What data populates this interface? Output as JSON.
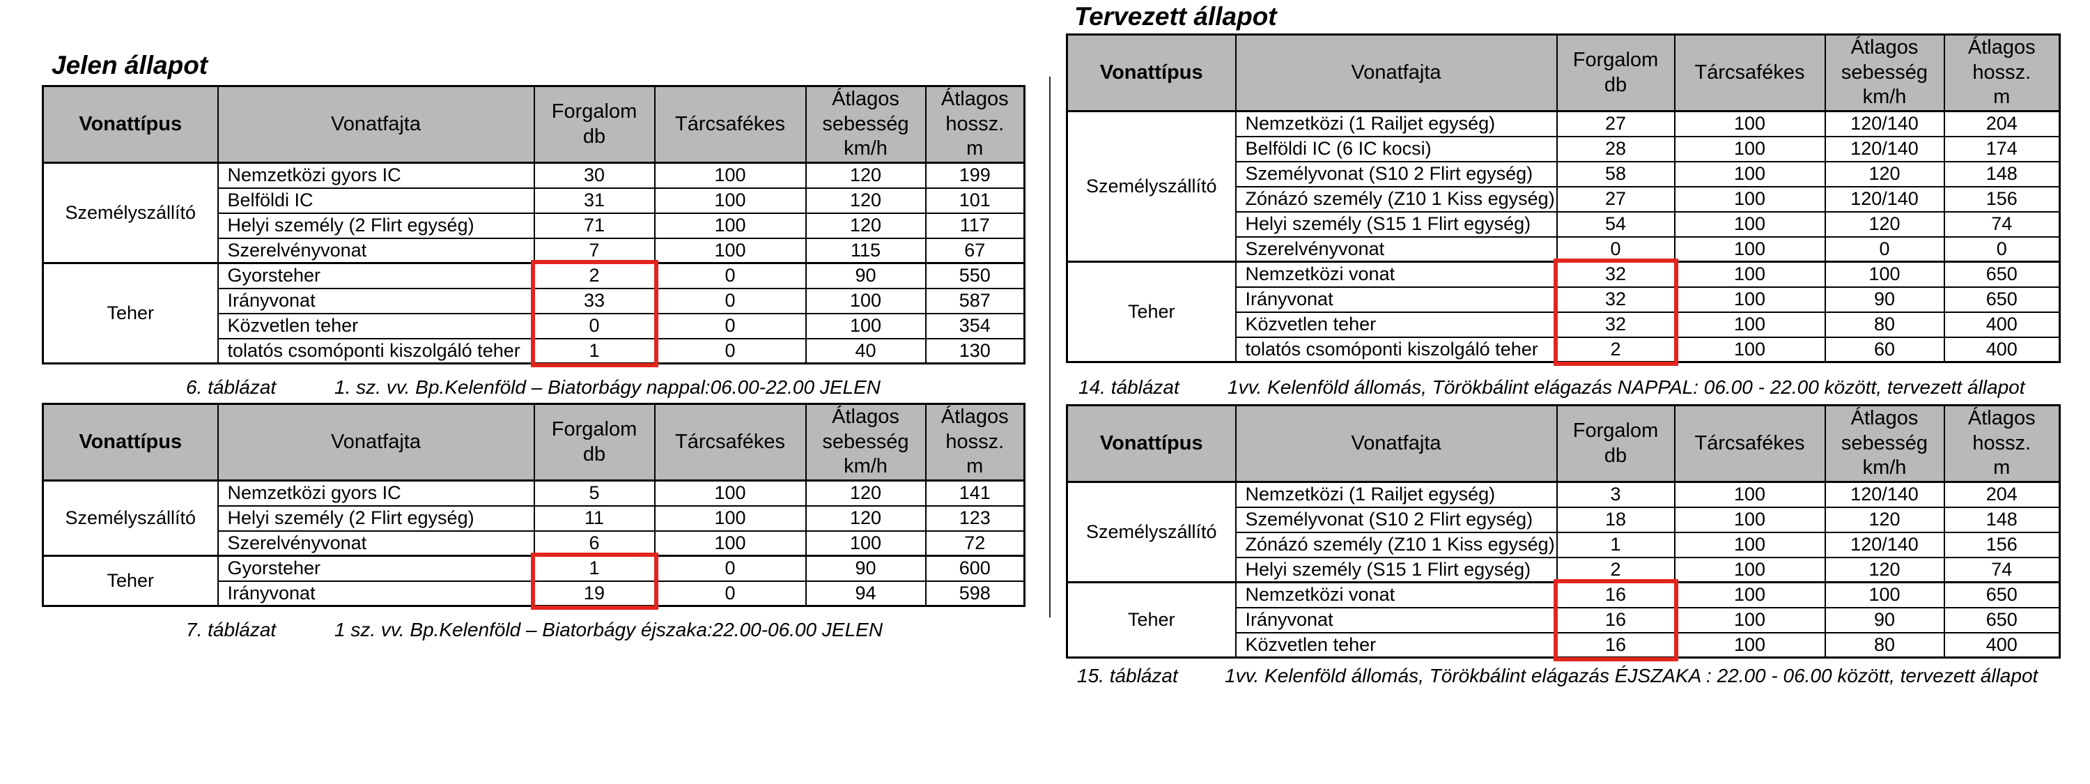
{
  "headings": {
    "left": "Jelen állapot",
    "right": "Tervezett állapot"
  },
  "columns": {
    "vonattipus": "Vonattípus",
    "vonatfajta": "Vonatfajta",
    "forgalom": "Forgalom\ndb",
    "tarcsafekes": "Tárcsafékes",
    "sebesseg": "Átlagos\nsebesség\nkm/h",
    "hossz": "Átlagos\nhossz.\nm"
  },
  "colors": {
    "highlight_box": "#e2251d",
    "header_background": "#b9b9b9"
  },
  "tables": [
    {
      "caption_label": "6. táblázat",
      "caption_text": "1. sz. vv. Bp.Kelenföld – Biatorbágy nappal:06.00-22.00 JELEN",
      "groups": [
        {
          "type": "Személyszállító",
          "highlight": false,
          "rows": [
            [
              "Nemzetközi gyors IC",
              "30",
              "100",
              "120",
              "199"
            ],
            [
              "Belföldi IC",
              "31",
              "100",
              "120",
              "101"
            ],
            [
              "Helyi személy (2 Flirt egység)",
              "71",
              "100",
              "120",
              "117"
            ],
            [
              "Szerelvényvonat",
              "7",
              "100",
              "115",
              "67"
            ]
          ]
        },
        {
          "type": "Teher",
          "highlight": true,
          "rows": [
            [
              "Gyorsteher",
              "2",
              "0",
              "90",
              "550"
            ],
            [
              "Irányvonat",
              "33",
              "0",
              "100",
              "587"
            ],
            [
              "Közvetlen teher",
              "0",
              "0",
              "100",
              "354"
            ],
            [
              "tolatós csomóponti kiszolgáló teher",
              "1",
              "0",
              "40",
              "130"
            ]
          ]
        }
      ]
    },
    {
      "caption_label": "7. táblázat",
      "caption_text": "1 sz. vv. Bp.Kelenföld – Biatorbágy éjszaka:22.00-06.00 JELEN",
      "groups": [
        {
          "type": "Személyszállító",
          "highlight": false,
          "rows": [
            [
              "Nemzetközi gyors IC",
              "5",
              "100",
              "120",
              "141"
            ],
            [
              "Helyi személy (2 Flirt egység)",
              "11",
              "100",
              "120",
              "123"
            ],
            [
              "Szerelvényvonat",
              "6",
              "100",
              "100",
              "72"
            ]
          ]
        },
        {
          "type": "Teher",
          "highlight": true,
          "rows": [
            [
              "Gyorsteher",
              "1",
              "0",
              "90",
              "600"
            ],
            [
              "Irányvonat",
              "19",
              "0",
              "94",
              "598"
            ]
          ]
        }
      ]
    },
    {
      "caption_label": "14. táblázat",
      "caption_text": "1vv. Kelenföld állomás, Törökbálint elágazás NAPPAL: 06.00 - 22.00 között, tervezett állapot",
      "groups": [
        {
          "type": "Személyszállító",
          "highlight": false,
          "rows": [
            [
              "Nemzetközi (1 Railjet egység)",
              "27",
              "100",
              "120/140",
              "204"
            ],
            [
              "Belföldi IC (6 IC kocsi)",
              "28",
              "100",
              "120/140",
              "174"
            ],
            [
              "Személyvonat (S10 2 Flirt egység)",
              "58",
              "100",
              "120",
              "148"
            ],
            [
              "Zónázó személy (Z10 1 Kiss egység)",
              "27",
              "100",
              "120/140",
              "156"
            ],
            [
              "Helyi személy (S15 1 Flirt egység)",
              "54",
              "100",
              "120",
              "74"
            ],
            [
              "Szerelvényvonat",
              "0",
              "100",
              "0",
              "0"
            ]
          ]
        },
        {
          "type": "Teher",
          "highlight": true,
          "rows": [
            [
              "Nemzetközi vonat",
              "32",
              "100",
              "100",
              "650"
            ],
            [
              "Irányvonat",
              "32",
              "100",
              "90",
              "650"
            ],
            [
              "Közvetlen teher",
              "32",
              "100",
              "80",
              "400"
            ],
            [
              "tolatós csomóponti kiszolgáló teher",
              "2",
              "100",
              "60",
              "400"
            ]
          ]
        }
      ]
    },
    {
      "caption_label": "15. táblázat",
      "caption_text": "1vv. Kelenföld állomás, Törökbálint elágazás ÉJSZAKA : 22.00 - 06.00 között, tervezett állapot",
      "groups": [
        {
          "type": "Személyszállító",
          "highlight": false,
          "rows": [
            [
              "Nemzetközi (1 Railjet egység)",
              "3",
              "100",
              "120/140",
              "204"
            ],
            [
              "Személyvonat (S10 2 Flirt egység)",
              "18",
              "100",
              "120",
              "148"
            ],
            [
              "Zónázó személy (Z10 1 Kiss egység)",
              "1",
              "100",
              "120/140",
              "156"
            ],
            [
              "Helyi személy (S15 1 Flirt egység)",
              "2",
              "100",
              "120",
              "74"
            ]
          ]
        },
        {
          "type": "Teher",
          "highlight": true,
          "rows": [
            [
              "Nemzetközi vonat",
              "16",
              "100",
              "100",
              "650"
            ],
            [
              "Irányvonat",
              "16",
              "100",
              "90",
              "650"
            ],
            [
              "Közvetlen teher",
              "16",
              "100",
              "80",
              "400"
            ]
          ]
        }
      ]
    }
  ]
}
